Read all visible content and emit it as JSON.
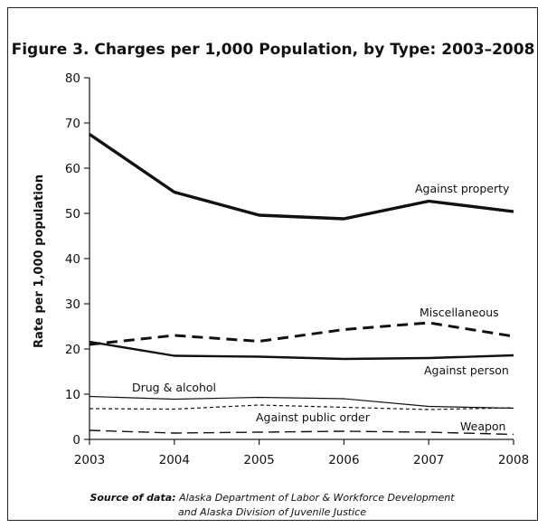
{
  "chart_data": {
    "type": "line",
    "title": "Figure 3. Charges per 1,000 Population, by Type: 2003–2008",
    "xlabel": "",
    "ylabel": "Rate per 1,000 population",
    "x": [
      "2003",
      "2004",
      "2005",
      "2006",
      "2007",
      "2008"
    ],
    "ylim": [
      0,
      80
    ],
    "yticks": [
      "0",
      "10",
      "20",
      "30",
      "40",
      "50",
      "60",
      "70",
      "80"
    ],
    "grid": false,
    "series": [
      {
        "name": "Against property",
        "values": [
          67.5,
          54.7,
          49.6,
          48.8,
          52.7,
          50.4
        ],
        "style": "solid-thick"
      },
      {
        "name": "Miscellaneous",
        "values": [
          21.0,
          23.0,
          21.7,
          24.3,
          25.8,
          22.8
        ],
        "style": "dashed-thick"
      },
      {
        "name": "Against person",
        "values": [
          21.6,
          18.5,
          18.3,
          17.8,
          18.0,
          18.6
        ],
        "style": "solid-medium"
      },
      {
        "name": "Drug & alcohol",
        "values": [
          9.5,
          8.9,
          9.3,
          9.0,
          7.3,
          6.9
        ],
        "style": "solid-thin"
      },
      {
        "name": "Against public order",
        "values": [
          6.8,
          6.7,
          7.6,
          7.1,
          6.6,
          7.0
        ],
        "style": "dotted"
      },
      {
        "name": "Weapon",
        "values": [
          2.0,
          1.4,
          1.6,
          1.8,
          1.6,
          1.1
        ],
        "style": "dashed-long"
      }
    ],
    "source_label": "Source of data:",
    "source_line1": "Alaska Department of Labor & Workforce Development",
    "source_line2": "and Alaska Division of Juvenile Justice"
  }
}
